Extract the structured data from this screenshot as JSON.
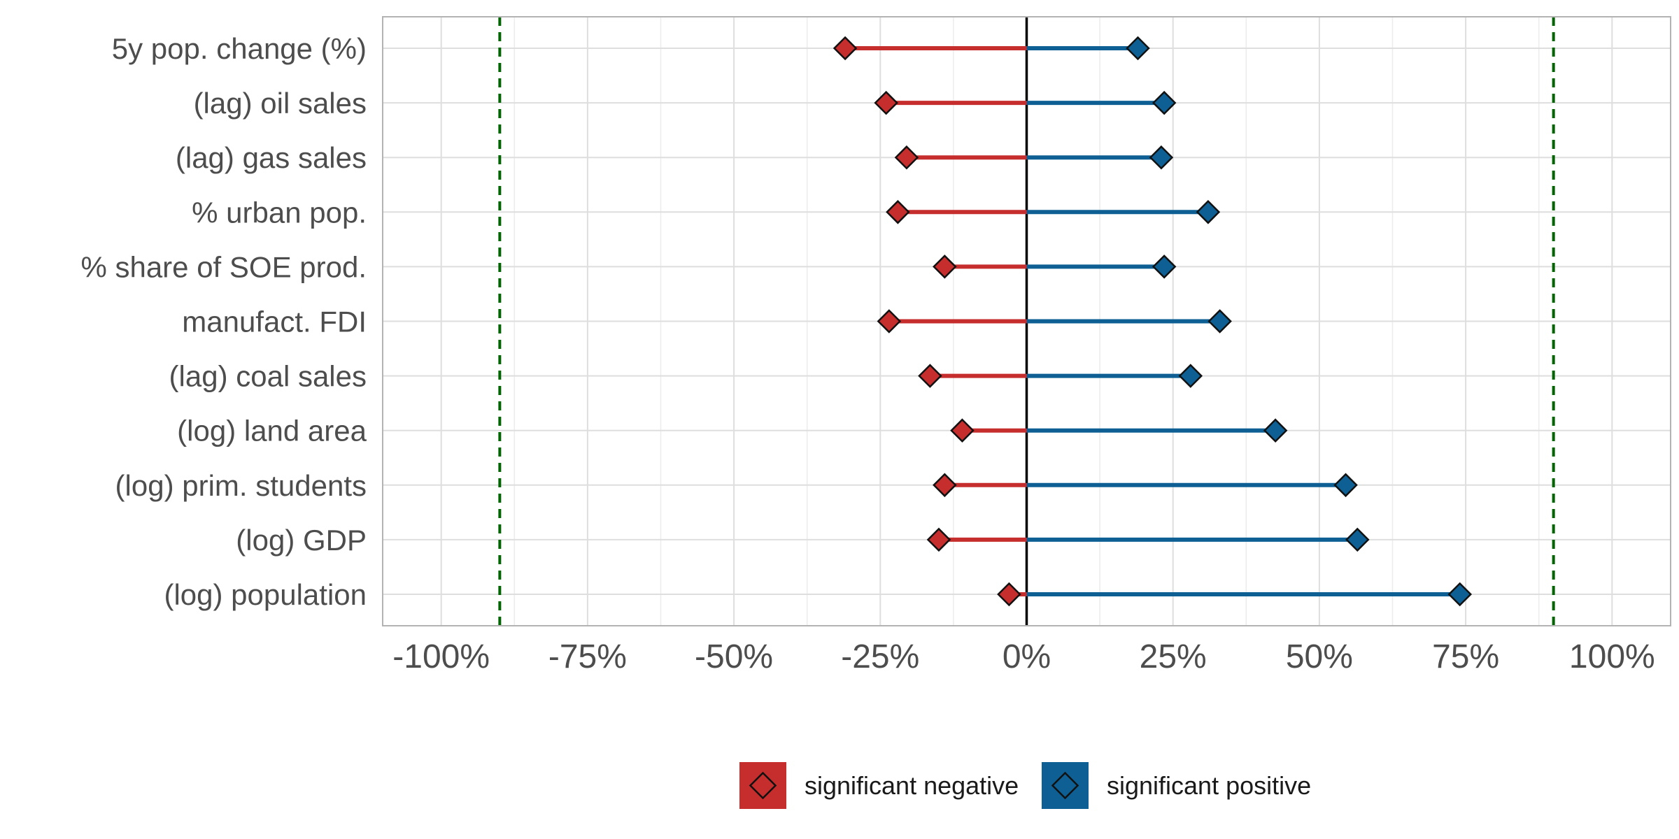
{
  "chart_data": {
    "type": "dumbbell",
    "title": "",
    "xlabel": "",
    "ylabel": "",
    "xlim": [
      -1.1,
      1.1
    ],
    "x_ticks": [
      -1.0,
      -0.75,
      -0.5,
      -0.25,
      0,
      0.25,
      0.5,
      0.75,
      1.0
    ],
    "x_tick_labels": [
      "-100%",
      "-75%",
      "-50%",
      "-25%",
      "0%",
      "25%",
      "50%",
      "75%",
      "100%"
    ],
    "reference_lines": [
      {
        "x": 0,
        "style": "solid",
        "color": "#000000"
      },
      {
        "x": -0.9,
        "style": "dashed",
        "color": "#006400"
      },
      {
        "x": 0.9,
        "style": "dashed",
        "color": "#006400"
      }
    ],
    "categories": [
      "5y pop. change (%)",
      "(lag) oil sales",
      "(lag) gas sales",
      "% urban pop.",
      "% share of SOE prod.",
      "manufact. FDI",
      "(lag) coal sales",
      "(log) land area",
      "(log) prim. students",
      "(log) GDP",
      "(log) population"
    ],
    "series": [
      {
        "name": "significant negative",
        "color": "#c62d2d",
        "values": [
          -0.31,
          -0.24,
          -0.205,
          -0.22,
          -0.14,
          -0.235,
          -0.165,
          -0.11,
          -0.14,
          -0.15,
          -0.03
        ]
      },
      {
        "name": "significant positive",
        "color": "#0e6094",
        "values": [
          0.19,
          0.235,
          0.23,
          0.31,
          0.235,
          0.33,
          0.28,
          0.425,
          0.545,
          0.565,
          0.74
        ]
      }
    ],
    "grid": true,
    "legend_position": "bottom"
  }
}
